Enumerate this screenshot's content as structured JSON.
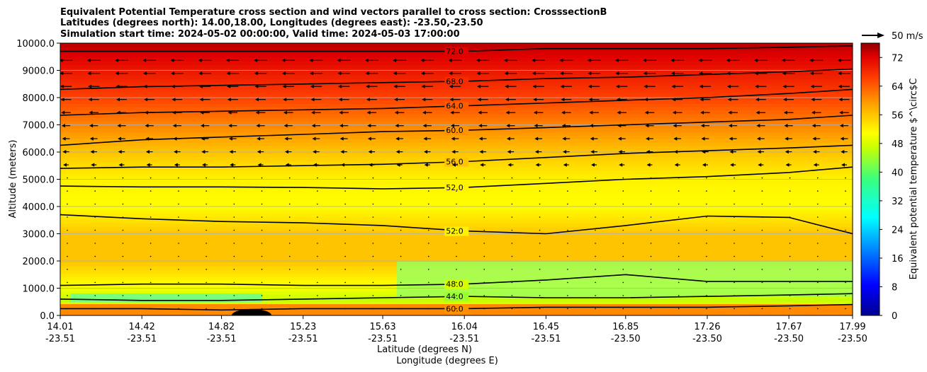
{
  "chart_data": {
    "type": "contourf-cross-section",
    "title_lines": [
      "Equivalent Potential Temperature cross section and wind vectors parallel to cross section: CrosssectionB",
      "Latitudes (degrees north): 14.00,18.00, Longitudes (degrees east): -23.50,-23.50",
      "Simulation start time: 2024-05-02 00:00:00, Valid time: 2024-05-03 17:00:00"
    ],
    "ylabel": "Altitude (meters)",
    "xlabel_lat": "Latitude (degrees N)",
    "xlabel_lon": "Longitude (degrees E)",
    "ylim": [
      0,
      10000
    ],
    "yticks": [
      "0.0",
      "1000.0",
      "2000.0",
      "3000.0",
      "4000.0",
      "5000.0",
      "6000.0",
      "7000.0",
      "8000.0",
      "9000.0",
      "10000.0"
    ],
    "x_positions": [
      14.01,
      14.42,
      14.82,
      15.23,
      15.63,
      16.04,
      16.45,
      16.85,
      17.26,
      17.67,
      17.99
    ],
    "xticks_lat": [
      "14.01",
      "14.42",
      "14.82",
      "15.23",
      "15.63",
      "16.04",
      "16.45",
      "16.85",
      "17.26",
      "17.67",
      "17.99"
    ],
    "xticks_lon": [
      "-23.51",
      "-23.51",
      "-23.51",
      "-23.51",
      "-23.51",
      "-23.51",
      "-23.51",
      "-23.50",
      "-23.50",
      "-23.50",
      "-23.50"
    ],
    "colorbar": {
      "label": "Equivalent potential temperature $^\\circ$C",
      "min": 0,
      "max": 76,
      "ticks": [
        "0",
        "8",
        "16",
        "24",
        "32",
        "40",
        "48",
        "56",
        "64",
        "72"
      ]
    },
    "wind_key_label": "50 m/s",
    "theta_e_profile": [
      {
        "alt": 0,
        "value": 64
      },
      {
        "alt": 500,
        "value": 46
      },
      {
        "alt": 1000,
        "value": 50
      },
      {
        "alt": 2000,
        "value": 56
      },
      {
        "alt": 3000,
        "value": 56
      },
      {
        "alt": 4000,
        "value": 51
      },
      {
        "alt": 5000,
        "value": 52
      },
      {
        "alt": 6000,
        "value": 56
      },
      {
        "alt": 7000,
        "value": 61
      },
      {
        "alt": 8000,
        "value": 66
      },
      {
        "alt": 9000,
        "value": 70
      },
      {
        "alt": 10000,
        "value": 74
      }
    ],
    "contour_lines": [
      {
        "label": "72.0",
        "level": 72,
        "alts": [
          9700,
          9700,
          9700,
          9700,
          9700,
          9700,
          9800,
          9800,
          9800,
          9850,
          9900
        ]
      },
      {
        "label": "68.0",
        "level": 68,
        "alts": [
          8300,
          8400,
          8450,
          8500,
          8550,
          8600,
          8700,
          8750,
          8850,
          8950,
          9050
        ]
      },
      {
        "label": "64.0",
        "level": 64,
        "alts": [
          7350,
          7450,
          7500,
          7550,
          7600,
          7700,
          7800,
          7900,
          8000,
          8150,
          8300
        ]
      },
      {
        "label": "60.0",
        "level": 60,
        "alts": [
          6250,
          6450,
          6550,
          6650,
          6750,
          6800,
          6900,
          7000,
          7100,
          7200,
          7350
        ]
      },
      {
        "label": "56.0",
        "level": 56,
        "alts": [
          5400,
          5450,
          5450,
          5500,
          5550,
          5650,
          5800,
          5950,
          6050,
          6150,
          6250
        ]
      },
      {
        "label": "52.0",
        "level": 52,
        "alts": [
          4750,
          4720,
          4720,
          4700,
          4650,
          4700,
          4850,
          5000,
          5100,
          5250,
          5450
        ]
      },
      {
        "label": "52.0",
        "level": 52,
        "alts": [
          3700,
          3550,
          3450,
          3400,
          3300,
          3100,
          3000,
          3300,
          3650,
          3600,
          3000
        ]
      },
      {
        "label": "48.0",
        "level": 48,
        "alts": [
          1100,
          1150,
          1150,
          1100,
          1100,
          1150,
          1300,
          1500,
          1250,
          1250,
          1250
        ]
      },
      {
        "label": "44.0",
        "level": 44,
        "alts": [
          600,
          550,
          550,
          600,
          650,
          700,
          650,
          650,
          700,
          750,
          800
        ]
      },
      {
        "label": "60.0",
        "level": 60,
        "alts": [
          250,
          250,
          200,
          250,
          250,
          250,
          300,
          300,
          300,
          350,
          400
        ]
      }
    ]
  }
}
